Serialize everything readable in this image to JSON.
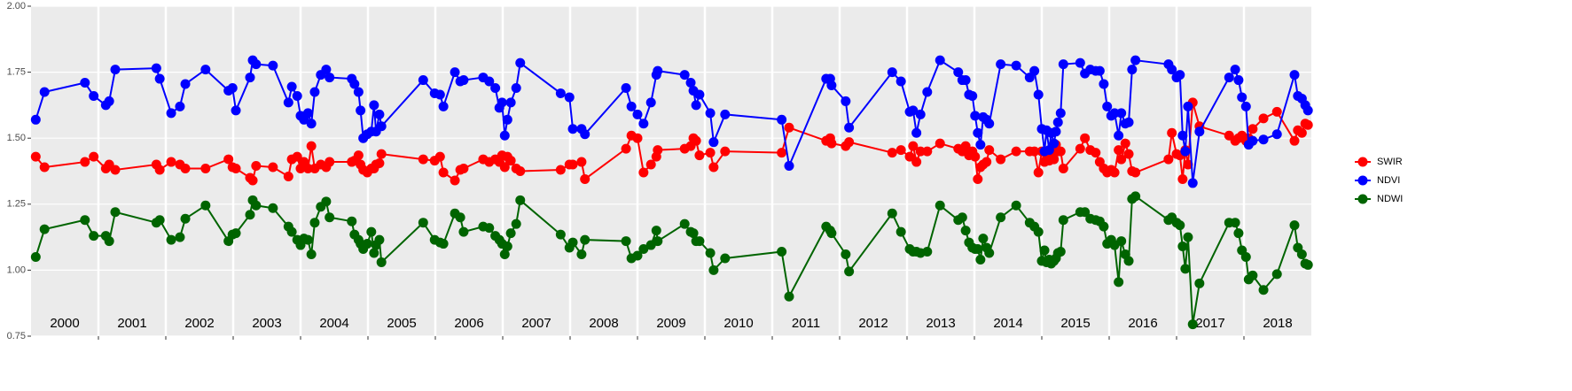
{
  "chart_data": {
    "type": "line",
    "x": [
      2000.07,
      2000.2,
      2000.8,
      2000.93,
      2001.11,
      2001.16,
      2001.25,
      2001.86,
      2001.91,
      2002.08,
      2002.21,
      2002.29,
      2002.59,
      2002.93,
      2002.99,
      2003.04,
      2003.25,
      2003.29,
      2003.34,
      2003.59,
      2003.82,
      2003.87,
      2003.95,
      2004.0,
      2004.05,
      2004.11,
      2004.16,
      2004.21,
      2004.3,
      2004.38,
      2004.43,
      2004.76,
      2004.8,
      2004.86,
      2004.89,
      2004.93,
      2004.99,
      2005.05,
      2005.09,
      2005.12,
      2005.17,
      2005.2,
      2005.82,
      2005.99,
      2006.07,
      2006.12,
      2006.29,
      2006.37,
      2006.42,
      2006.71,
      2006.8,
      2006.89,
      2006.95,
      2006.99,
      2007.03,
      2007.07,
      2007.12,
      2007.2,
      2007.26,
      2007.86,
      2007.99,
      2008.04,
      2008.17,
      2008.22,
      2008.83,
      2008.91,
      2009.0,
      2009.09,
      2009.2,
      2009.28,
      2009.3,
      2009.7,
      2009.79,
      2009.83,
      2009.87,
      2009.92,
      2010.08,
      2010.13,
      2010.3,
      2011.14,
      2011.25,
      2011.8,
      2011.86,
      2011.88,
      2012.09,
      2012.14,
      2012.78,
      2012.91,
      2013.04,
      2013.09,
      2013.14,
      2013.2,
      2013.3,
      2013.49,
      2013.76,
      2013.82,
      2013.87,
      2013.92,
      2013.97,
      2014.01,
      2014.05,
      2014.09,
      2014.13,
      2014.18,
      2014.22,
      2014.39,
      2014.62,
      2014.82,
      2014.89,
      2014.95,
      2015.0,
      2015.04,
      2015.07,
      2015.11,
      2015.14,
      2015.18,
      2015.21,
      2015.24,
      2015.28,
      2015.32,
      2015.57,
      2015.64,
      2015.72,
      2015.8,
      2015.86,
      2015.92,
      2015.97,
      2016.03,
      2016.08,
      2016.14,
      2016.18,
      2016.24,
      2016.29,
      2016.34,
      2016.39,
      2016.88,
      2016.93,
      2017.0,
      2017.05,
      2017.09,
      2017.13,
      2017.17,
      2017.24,
      2017.34,
      2017.78,
      2017.87,
      2017.92,
      2017.97,
      2018.03,
      2018.07,
      2018.13,
      2018.29,
      2018.49,
      2018.75,
      2018.8,
      2018.86,
      2018.91,
      2018.95
    ],
    "series": [
      {
        "name": "SWIR",
        "color": "#ff0000",
        "values": [
          1.43,
          1.39,
          1.41,
          1.43,
          1.385,
          1.4,
          1.38,
          1.4,
          1.38,
          1.41,
          1.4,
          1.385,
          1.385,
          1.42,
          1.39,
          1.385,
          1.35,
          1.34,
          1.395,
          1.39,
          1.355,
          1.42,
          1.43,
          1.385,
          1.41,
          1.385,
          1.47,
          1.385,
          1.4,
          1.39,
          1.41,
          1.41,
          1.415,
          1.435,
          1.4,
          1.38,
          1.37,
          1.385,
          1.385,
          1.4,
          1.405,
          1.44,
          1.42,
          1.415,
          1.43,
          1.37,
          1.34,
          1.38,
          1.385,
          1.42,
          1.41,
          1.42,
          1.41,
          1.435,
          1.39,
          1.43,
          1.415,
          1.385,
          1.375,
          1.38,
          1.4,
          1.4,
          1.41,
          1.345,
          1.46,
          1.51,
          1.5,
          1.37,
          1.4,
          1.43,
          1.455,
          1.46,
          1.47,
          1.5,
          1.49,
          1.435,
          1.445,
          1.39,
          1.45,
          1.445,
          1.54,
          1.49,
          1.5,
          1.48,
          1.47,
          1.485,
          1.445,
          1.455,
          1.43,
          1.47,
          1.41,
          1.45,
          1.45,
          1.48,
          1.46,
          1.45,
          1.47,
          1.435,
          1.45,
          1.43,
          1.345,
          1.39,
          1.4,
          1.41,
          1.455,
          1.42,
          1.45,
          1.45,
          1.45,
          1.37,
          1.45,
          1.41,
          1.42,
          1.415,
          1.43,
          1.42,
          1.475,
          1.45,
          1.45,
          1.385,
          1.46,
          1.5,
          1.455,
          1.445,
          1.41,
          1.385,
          1.37,
          1.38,
          1.37,
          1.455,
          1.42,
          1.48,
          1.44,
          1.375,
          1.37,
          1.42,
          1.52,
          1.44,
          1.435,
          1.345,
          1.455,
          1.4,
          1.635,
          1.545,
          1.51,
          1.49,
          1.5,
          1.51,
          1.49,
          1.5,
          1.535,
          1.575,
          1.6,
          1.49,
          1.53,
          1.52,
          1.555,
          1.55
        ]
      },
      {
        "name": "NDVI",
        "color": "#0000ff",
        "values": [
          1.57,
          1.675,
          1.71,
          1.66,
          1.625,
          1.64,
          1.76,
          1.765,
          1.725,
          1.595,
          1.62,
          1.705,
          1.76,
          1.68,
          1.69,
          1.605,
          1.73,
          1.795,
          1.78,
          1.775,
          1.635,
          1.695,
          1.66,
          1.585,
          1.57,
          1.595,
          1.555,
          1.675,
          1.74,
          1.76,
          1.73,
          1.725,
          1.705,
          1.675,
          1.605,
          1.5,
          1.515,
          1.525,
          1.625,
          1.525,
          1.59,
          1.545,
          1.72,
          1.67,
          1.665,
          1.62,
          1.75,
          1.715,
          1.72,
          1.73,
          1.715,
          1.69,
          1.615,
          1.635,
          1.51,
          1.57,
          1.635,
          1.69,
          1.785,
          1.67,
          1.655,
          1.535,
          1.535,
          1.515,
          1.69,
          1.62,
          1.59,
          1.555,
          1.635,
          1.74,
          1.755,
          1.74,
          1.71,
          1.68,
          1.625,
          1.665,
          1.595,
          1.485,
          1.59,
          1.57,
          1.395,
          1.725,
          1.725,
          1.7,
          1.64,
          1.54,
          1.75,
          1.715,
          1.6,
          1.605,
          1.52,
          1.59,
          1.675,
          1.795,
          1.75,
          1.72,
          1.72,
          1.665,
          1.66,
          1.585,
          1.52,
          1.475,
          1.58,
          1.57,
          1.555,
          1.78,
          1.775,
          1.73,
          1.755,
          1.665,
          1.535,
          1.45,
          1.53,
          1.455,
          1.52,
          1.48,
          1.525,
          1.56,
          1.595,
          1.78,
          1.785,
          1.745,
          1.76,
          1.755,
          1.755,
          1.705,
          1.62,
          1.585,
          1.595,
          1.51,
          1.595,
          1.555,
          1.56,
          1.76,
          1.795,
          1.78,
          1.76,
          1.73,
          1.74,
          1.51,
          1.45,
          1.62,
          1.33,
          1.525,
          1.73,
          1.76,
          1.72,
          1.655,
          1.62,
          1.475,
          1.49,
          1.495,
          1.515,
          1.74,
          1.66,
          1.65,
          1.625,
          1.605
        ]
      },
      {
        "name": "NDWI",
        "color": "#006400",
        "values": [
          1.05,
          1.155,
          1.19,
          1.13,
          1.13,
          1.11,
          1.22,
          1.18,
          1.19,
          1.115,
          1.125,
          1.195,
          1.245,
          1.11,
          1.135,
          1.14,
          1.21,
          1.265,
          1.245,
          1.235,
          1.165,
          1.145,
          1.115,
          1.095,
          1.12,
          1.115,
          1.06,
          1.18,
          1.24,
          1.26,
          1.2,
          1.185,
          1.135,
          1.115,
          1.1,
          1.08,
          1.1,
          1.145,
          1.065,
          1.095,
          1.115,
          1.03,
          1.18,
          1.115,
          1.105,
          1.1,
          1.215,
          1.2,
          1.145,
          1.165,
          1.16,
          1.13,
          1.115,
          1.1,
          1.06,
          1.09,
          1.14,
          1.175,
          1.265,
          1.135,
          1.085,
          1.105,
          1.06,
          1.115,
          1.11,
          1.045,
          1.055,
          1.08,
          1.095,
          1.15,
          1.11,
          1.175,
          1.145,
          1.14,
          1.11,
          1.11,
          1.065,
          1.0,
          1.045,
          1.07,
          0.9,
          1.165,
          1.15,
          1.14,
          1.06,
          0.995,
          1.215,
          1.145,
          1.08,
          1.07,
          1.07,
          1.065,
          1.07,
          1.245,
          1.19,
          1.2,
          1.15,
          1.105,
          1.085,
          1.08,
          1.08,
          1.04,
          1.12,
          1.085,
          1.065,
          1.2,
          1.245,
          1.18,
          1.165,
          1.145,
          1.035,
          1.075,
          1.03,
          1.04,
          1.025,
          1.035,
          1.045,
          1.065,
          1.07,
          1.19,
          1.22,
          1.22,
          1.195,
          1.19,
          1.185,
          1.165,
          1.1,
          1.115,
          1.095,
          0.955,
          1.11,
          1.06,
          1.035,
          1.27,
          1.28,
          1.19,
          1.2,
          1.18,
          1.17,
          1.09,
          1.005,
          1.125,
          0.795,
          0.95,
          1.18,
          1.18,
          1.14,
          1.075,
          1.05,
          0.965,
          0.98,
          0.925,
          0.985,
          1.17,
          1.085,
          1.06,
          1.025,
          1.02
        ]
      }
    ],
    "xlim": [
      2000,
      2019
    ],
    "xticks": [
      2001,
      2002,
      2003,
      2004,
      2005,
      2006,
      2007,
      2008,
      2009,
      2010,
      2011,
      2012,
      2013,
      2014,
      2015,
      2016,
      2017,
      2018
    ],
    "xlabels": [
      {
        "value": 2000.5,
        "label": "2000"
      },
      {
        "value": 2001.5,
        "label": "2001"
      },
      {
        "value": 2002.5,
        "label": "2002"
      },
      {
        "value": 2003.5,
        "label": "2003"
      },
      {
        "value": 2004.5,
        "label": "2004"
      },
      {
        "value": 2005.5,
        "label": "2005"
      },
      {
        "value": 2006.5,
        "label": "2006"
      },
      {
        "value": 2007.5,
        "label": "2007"
      },
      {
        "value": 2008.5,
        "label": "2008"
      },
      {
        "value": 2009.5,
        "label": "2009"
      },
      {
        "value": 2010.5,
        "label": "2010"
      },
      {
        "value": 2011.5,
        "label": "2011"
      },
      {
        "value": 2012.5,
        "label": "2012"
      },
      {
        "value": 2013.5,
        "label": "2013"
      },
      {
        "value": 2014.5,
        "label": "2014"
      },
      {
        "value": 2015.5,
        "label": "2015"
      },
      {
        "value": 2016.5,
        "label": "2016"
      },
      {
        "value": 2017.5,
        "label": "2017"
      },
      {
        "value": 2018.5,
        "label": "2018"
      }
    ],
    "ylim": [
      0.75,
      2.0
    ],
    "yticks": [
      {
        "value": 0.75,
        "label": "0.75"
      },
      {
        "value": 1.0,
        "label": "1.00"
      },
      {
        "value": 1.25,
        "label": "1.25"
      },
      {
        "value": 1.5,
        "label": "1.50"
      },
      {
        "value": 1.75,
        "label": "1.75"
      },
      {
        "value": 2.0,
        "label": "2.00"
      }
    ],
    "grid": true,
    "legend": "right"
  }
}
